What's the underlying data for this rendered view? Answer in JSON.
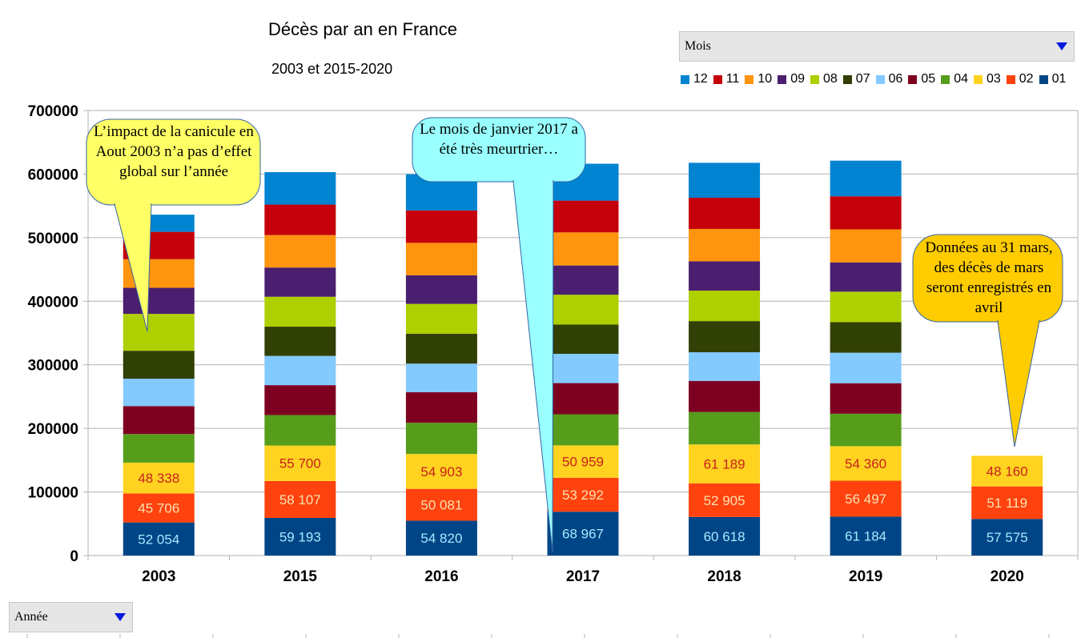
{
  "title": "Décès par an en France",
  "subtitle": "2003 et 2015-2020",
  "controls": {
    "series_dropdown": {
      "label": "Mois"
    },
    "category_dropdown": {
      "label": "Année"
    }
  },
  "callouts": [
    {
      "text": "L’impact de la canicule en Aout 2003 n’a pas d’effet global sur l’année",
      "fill": "#ffff66"
    },
    {
      "text": "Le mois de janvier 2017 a été très meurtrier…",
      "fill": "#99ffff"
    },
    {
      "text": "Données au 31 mars, des décès de mars seront enregistrés en avril",
      "fill": "#ffcc00"
    }
  ],
  "chart_data": {
    "type": "bar",
    "stacked": true,
    "title": "Décès par an en France",
    "subtitle": "2003 et 2015-2020",
    "categories": [
      "2003",
      "2015",
      "2016",
      "2017",
      "2018",
      "2019",
      "2020"
    ],
    "ylim": [
      0,
      700000
    ],
    "yticks": [
      "0",
      "100000",
      "200000",
      "300000",
      "400000",
      "500000",
      "600000",
      "700000"
    ],
    "grid": true,
    "legend_position": "top-right",
    "series": [
      {
        "name": "01",
        "color": "#004586",
        "values": [
          52054,
          59193,
          54820,
          68967,
          60618,
          61184,
          57575
        ],
        "labels": [
          "52 054",
          "59 193",
          "54 820",
          "68 967",
          "60 618",
          "61 184",
          "57 575"
        ],
        "label_color": "#a6e8ff"
      },
      {
        "name": "02",
        "color": "#ff420e",
        "values": [
          45706,
          58107,
          50081,
          53292,
          52905,
          56497,
          51119
        ],
        "labels": [
          "45 706",
          "58 107",
          "50 081",
          "53 292",
          "52 905",
          "56 497",
          "51 119"
        ],
        "label_color": "#ffe0b0"
      },
      {
        "name": "03",
        "color": "#ffd320",
        "values": [
          48338,
          55700,
          54903,
          50959,
          61189,
          54360,
          48160
        ],
        "labels": [
          "48 338",
          "55 700",
          "54 903",
          "50 959",
          "61 189",
          "54 360",
          "48 160"
        ],
        "label_color": "#c9211e"
      },
      {
        "name": "04",
        "color": "#579d1c",
        "values": [
          45000,
          48000,
          49000,
          49000,
          51000,
          51000,
          0
        ]
      },
      {
        "name": "05",
        "color": "#7e0021",
        "values": [
          44000,
          47000,
          48000,
          49000,
          49000,
          48000,
          0
        ]
      },
      {
        "name": "06",
        "color": "#83caff",
        "values": [
          43000,
          46000,
          45000,
          46000,
          45000,
          48000,
          0
        ]
      },
      {
        "name": "07",
        "color": "#314004",
        "values": [
          44000,
          46000,
          47000,
          46000,
          49000,
          48000,
          0
        ]
      },
      {
        "name": "08",
        "color": "#aecf00",
        "values": [
          58000,
          47000,
          47000,
          47000,
          48000,
          48000,
          0
        ]
      },
      {
        "name": "09",
        "color": "#4b1f6f",
        "values": [
          41000,
          46000,
          45000,
          46000,
          46000,
          46000,
          0
        ]
      },
      {
        "name": "10",
        "color": "#ff950e",
        "values": [
          45000,
          51000,
          51000,
          52000,
          51000,
          52000,
          0
        ]
      },
      {
        "name": "11",
        "color": "#c5000b",
        "values": [
          43000,
          48000,
          51000,
          50000,
          49000,
          52000,
          0
        ]
      },
      {
        "name": "12",
        "color": "#0084d1",
        "values": [
          27000,
          51000,
          57000,
          58000,
          55000,
          56000,
          0
        ]
      }
    ]
  }
}
